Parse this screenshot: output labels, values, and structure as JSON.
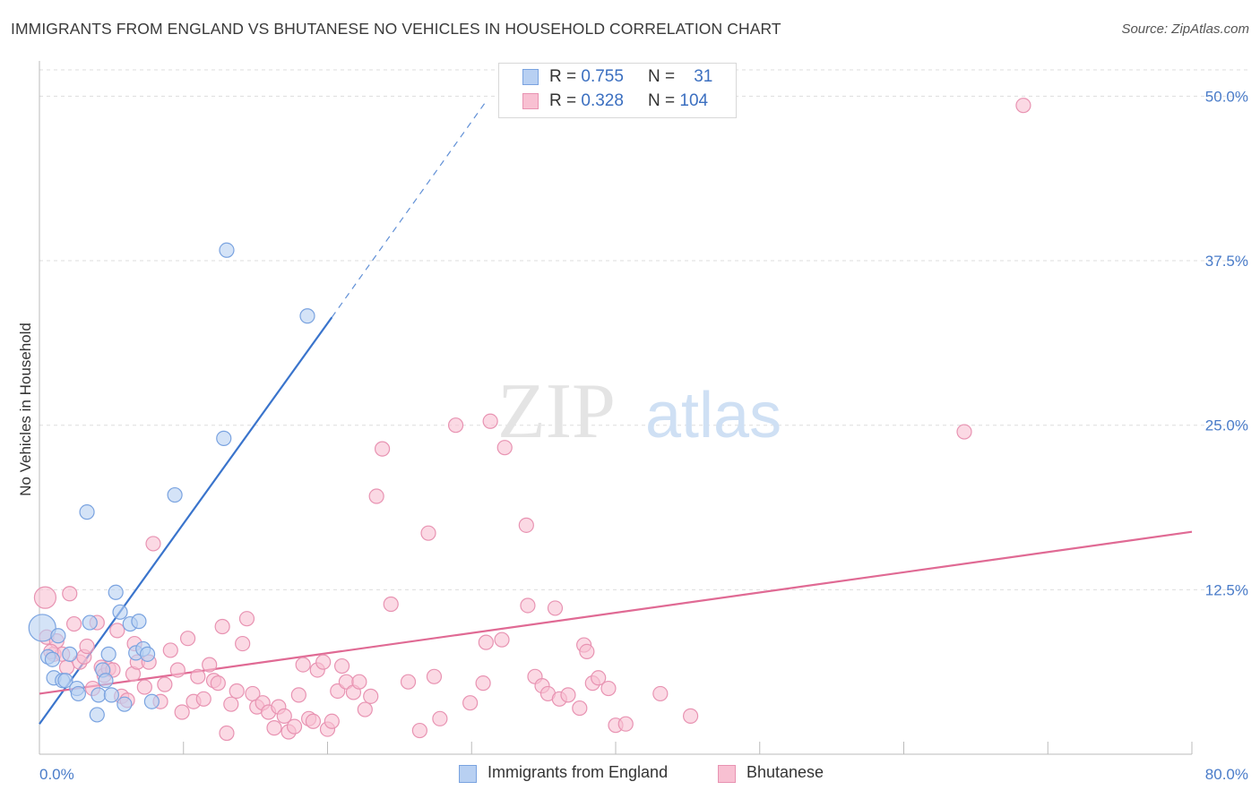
{
  "title": "IMMIGRANTS FROM ENGLAND VS BHUTANESE NO VEHICLES IN HOUSEHOLD CORRELATION CHART",
  "source": "Source: ZipAtlas.com",
  "watermark": {
    "zip": "ZIP",
    "atlas": "atlas"
  },
  "legend": {
    "rows": [
      {
        "r_label": "R =",
        "r_value": "0.755",
        "n_label": "N =",
        "n_value": "31"
      },
      {
        "r_label": "R =",
        "r_value": "0.328",
        "n_label": "N =",
        "n_value": "104"
      }
    ]
  },
  "bottom_legend": {
    "england": "Immigrants from England",
    "bhutanese": "Bhutanese"
  },
  "colors": {
    "england_fill": "#b8d0f2",
    "england_stroke": "#7aa3e0",
    "england_line": "#3a74cc",
    "bhutan_fill": "#f8c0d2",
    "bhutan_stroke": "#e893b2",
    "bhutan_line": "#e06a94",
    "grid": "#dddddd",
    "tick_text": "#4a7cc9"
  },
  "chart_data": {
    "type": "scatter",
    "title": "IMMIGRANTS FROM ENGLAND VS BHUTANESE NO VEHICLES IN HOUSEHOLD CORRELATION CHART",
    "xlabel": "",
    "ylabel": "No Vehicles in Household",
    "xlim": [
      0,
      80
    ],
    "ylim": [
      0,
      52
    ],
    "x_tick_labels": [
      "0.0%",
      "80.0%"
    ],
    "y_ticks": [
      12.5,
      25.0,
      37.5,
      50.0
    ],
    "y_tick_labels": [
      "12.5%",
      "25.0%",
      "37.5%",
      "50.0%"
    ],
    "grid": true,
    "legend_placement": "top-center",
    "series": [
      {
        "name": "Immigrants from England",
        "color": "#b8d0f2",
        "points": [
          [
            0.2,
            9.6
          ],
          [
            0.6,
            7.4
          ],
          [
            1.0,
            5.8
          ],
          [
            1.3,
            9.0
          ],
          [
            1.6,
            5.6
          ],
          [
            1.8,
            5.6
          ],
          [
            2.1,
            7.6
          ],
          [
            2.6,
            5.0
          ],
          [
            2.7,
            4.6
          ],
          [
            3.3,
            18.4
          ],
          [
            3.5,
            10.0
          ],
          [
            4.0,
            3.0
          ],
          [
            4.1,
            4.5
          ],
          [
            4.4,
            6.4
          ],
          [
            5.0,
            4.5
          ],
          [
            4.6,
            5.6
          ],
          [
            4.8,
            7.6
          ],
          [
            5.3,
            12.3
          ],
          [
            5.6,
            10.8
          ],
          [
            5.9,
            3.8
          ],
          [
            6.3,
            9.9
          ],
          [
            6.7,
            7.7
          ],
          [
            6.9,
            10.1
          ],
          [
            7.2,
            8.0
          ],
          [
            7.5,
            7.6
          ],
          [
            7.8,
            4.0
          ],
          [
            9.4,
            19.7
          ],
          [
            12.8,
            24.0
          ],
          [
            13.0,
            38.3
          ],
          [
            18.6,
            33.3
          ],
          [
            0.9,
            7.2
          ]
        ],
        "trend": {
          "x0": 0,
          "y0": 2.3,
          "x1": 20.3,
          "y1": 33.2,
          "dashed_to": [
            31.0,
            49.6
          ]
        }
      },
      {
        "name": "Bhutanese",
        "color": "#f8c0d2",
        "points": [
          [
            0.4,
            11.9
          ],
          [
            0.5,
            8.9
          ],
          [
            1.0,
            7.6
          ],
          [
            1.2,
            8.6
          ],
          [
            1.6,
            7.6
          ],
          [
            1.9,
            6.6
          ],
          [
            2.1,
            12.2
          ],
          [
            2.4,
            9.9
          ],
          [
            2.8,
            7.0
          ],
          [
            3.1,
            7.4
          ],
          [
            3.3,
            8.2
          ],
          [
            3.7,
            5.0
          ],
          [
            4.0,
            10.0
          ],
          [
            4.3,
            6.6
          ],
          [
            4.5,
            6.0
          ],
          [
            4.8,
            6.5
          ],
          [
            5.1,
            6.4
          ],
          [
            5.4,
            9.4
          ],
          [
            5.7,
            4.4
          ],
          [
            6.1,
            4.1
          ],
          [
            6.5,
            6.1
          ],
          [
            6.6,
            8.4
          ],
          [
            6.8,
            7.0
          ],
          [
            7.3,
            5.1
          ],
          [
            7.6,
            7.0
          ],
          [
            7.9,
            16.0
          ],
          [
            8.4,
            4.0
          ],
          [
            8.7,
            5.3
          ],
          [
            9.1,
            7.9
          ],
          [
            9.6,
            6.4
          ],
          [
            9.9,
            3.2
          ],
          [
            10.3,
            8.8
          ],
          [
            10.7,
            4.0
          ],
          [
            11.0,
            5.9
          ],
          [
            11.4,
            4.2
          ],
          [
            11.8,
            6.8
          ],
          [
            12.1,
            5.6
          ],
          [
            12.4,
            5.4
          ],
          [
            12.7,
            9.7
          ],
          [
            13.0,
            1.6
          ],
          [
            13.3,
            3.8
          ],
          [
            13.7,
            4.8
          ],
          [
            14.1,
            8.4
          ],
          [
            14.4,
            10.3
          ],
          [
            14.8,
            4.6
          ],
          [
            15.1,
            3.6
          ],
          [
            15.5,
            3.9
          ],
          [
            15.9,
            3.2
          ],
          [
            16.3,
            2.0
          ],
          [
            16.6,
            3.6
          ],
          [
            17.0,
            2.9
          ],
          [
            17.3,
            1.7
          ],
          [
            17.7,
            2.1
          ],
          [
            18.0,
            4.5
          ],
          [
            18.3,
            6.8
          ],
          [
            18.7,
            2.7
          ],
          [
            19.0,
            2.5
          ],
          [
            19.3,
            6.4
          ],
          [
            19.7,
            7.0
          ],
          [
            20.0,
            1.9
          ],
          [
            20.3,
            2.5
          ],
          [
            20.7,
            4.8
          ],
          [
            21.0,
            6.7
          ],
          [
            21.3,
            5.5
          ],
          [
            21.8,
            4.7
          ],
          [
            22.2,
            5.5
          ],
          [
            22.6,
            3.4
          ],
          [
            23.0,
            4.4
          ],
          [
            23.8,
            23.2
          ],
          [
            23.4,
            19.6
          ],
          [
            24.4,
            11.4
          ],
          [
            25.6,
            5.5
          ],
          [
            26.4,
            1.8
          ],
          [
            27.0,
            16.8
          ],
          [
            27.4,
            5.9
          ],
          [
            27.8,
            2.7
          ],
          [
            28.9,
            25.0
          ],
          [
            29.9,
            3.9
          ],
          [
            30.8,
            5.4
          ],
          [
            31.0,
            8.5
          ],
          [
            31.3,
            25.3
          ],
          [
            32.1,
            8.7
          ],
          [
            32.3,
            23.3
          ],
          [
            33.8,
            17.4
          ],
          [
            33.9,
            11.3
          ],
          [
            34.4,
            5.9
          ],
          [
            34.9,
            5.2
          ],
          [
            35.3,
            4.6
          ],
          [
            35.8,
            11.1
          ],
          [
            36.1,
            4.2
          ],
          [
            36.7,
            4.5
          ],
          [
            37.5,
            3.5
          ],
          [
            37.8,
            8.3
          ],
          [
            38.0,
            7.8
          ],
          [
            38.4,
            5.4
          ],
          [
            38.8,
            5.8
          ],
          [
            39.5,
            5.0
          ],
          [
            40.0,
            2.2
          ],
          [
            40.7,
            2.3
          ],
          [
            43.1,
            4.6
          ],
          [
            45.2,
            2.9
          ],
          [
            64.2,
            24.5
          ],
          [
            68.3,
            49.3
          ],
          [
            0.8,
            7.8
          ]
        ],
        "trend": {
          "x0": 0,
          "y0": 4.6,
          "x1": 80,
          "y1": 16.9
        }
      }
    ]
  }
}
